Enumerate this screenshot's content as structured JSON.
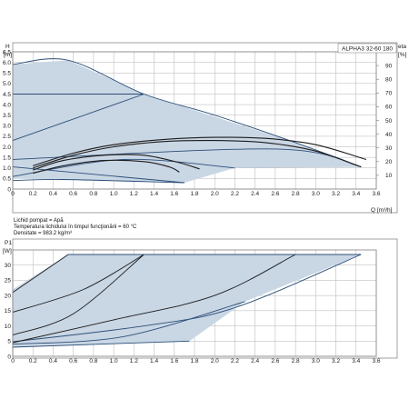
{
  "colors": {
    "area_fill": "#c9d6e4",
    "curve_dark": "#1c1c1c",
    "curve_blue": "#2c4f78",
    "grid": "#b3b3b3",
    "frame": "#8a8a8a"
  },
  "info": {
    "pumped_liquid": "Lichid pompat = Apă",
    "liquid_temp": "Temperatura lichidului în timpul funcţionării = 60 °C",
    "density": "Densitate = 983.2 kg/m³"
  },
  "chart_data": [
    {
      "type": "line",
      "title": "ALPHA3 32-60 180",
      "ylabel": "H [m]",
      "y2label": "eta [%]",
      "xlabel": "Q [m³/h]",
      "xlim": [
        0,
        3.6
      ],
      "ylim": [
        0,
        6.5
      ],
      "y2lim": [
        0,
        100
      ],
      "x_ticks": [
        "0",
        "0.2",
        "0.4",
        "0.6",
        "0.8",
        "1.0",
        "1.2",
        "1.4",
        "1.6",
        "1.8",
        "2.0",
        "2.2",
        "2.4",
        "2.6",
        "2.8",
        "3.0",
        "3.2",
        "3.4",
        "3.6"
      ],
      "y_ticks": [
        "0",
        "0.5",
        "1.0",
        "1.5",
        "2.0",
        "2.5",
        "3.0",
        "3.5",
        "4.0",
        "4.5",
        "5.0",
        "5.5",
        "6.0",
        "6.5"
      ],
      "y2_ticks": [
        "10",
        "20",
        "30",
        "40",
        "50",
        "60",
        "70",
        "80",
        "90"
      ],
      "grid": true,
      "operating_area": [
        [
          0,
          5.9
        ],
        [
          0.55,
          6.1
        ],
        [
          1.3,
          4.5
        ],
        [
          2.8,
          2.2
        ],
        [
          3.45,
          1.05
        ],
        [
          2.2,
          1.0
        ],
        [
          1.7,
          0.3
        ],
        [
          0,
          0.5
        ]
      ],
      "series": [
        {
          "role": "max_curve",
          "color": "#2c4f78",
          "points": [
            [
              0,
              5.9
            ],
            [
              0.55,
              6.1
            ],
            [
              1.3,
              4.5
            ],
            [
              2.0,
              3.5
            ],
            [
              2.8,
              2.2
            ],
            [
              3.45,
              1.05
            ]
          ]
        },
        {
          "role": "constant_pressure",
          "color": "#2c4f78",
          "points": [
            [
              0,
              4.5
            ],
            [
              1.3,
              4.5
            ]
          ]
        },
        {
          "role": "proportional_pressure",
          "color": "#2c4f78",
          "points": [
            [
              0,
              2.3
            ],
            [
              1.3,
              4.5
            ]
          ]
        },
        {
          "role": "constant_pressure",
          "color": "#2c4f78",
          "points": [
            [
              0,
              1.4
            ],
            [
              2.6,
              1.9
            ],
            [
              3.45,
              1.05
            ]
          ]
        },
        {
          "role": "constant_pressure",
          "color": "#2c4f78",
          "points": [
            [
              0,
              1.05
            ],
            [
              1.7,
              0.3
            ]
          ]
        },
        {
          "role": "constant_pressure",
          "color": "#2c4f78",
          "points": [
            [
              0,
              0.6
            ],
            [
              1.1,
              1.4
            ],
            [
              2.2,
              1.0
            ]
          ]
        },
        {
          "role": "constant_pressure",
          "color": "#2c4f78",
          "points": [
            [
              0,
              0.4
            ],
            [
              0.5,
              0.45
            ],
            [
              1.7,
              0.3
            ]
          ]
        },
        {
          "role": "eta",
          "color": "#1c1c1c",
          "points": [
            [
              0.2,
              1.1
            ],
            [
              0.6,
              1.7
            ],
            [
              1.0,
              2.1
            ],
            [
              1.5,
              2.35
            ],
            [
              2.0,
              2.45
            ],
            [
              2.5,
              2.4
            ],
            [
              3.0,
              2.1
            ],
            [
              3.5,
              1.4
            ]
          ]
        },
        {
          "role": "eta",
          "color": "#1c1c1c",
          "points": [
            [
              0.2,
              1.0
            ],
            [
              0.6,
              1.6
            ],
            [
              1.0,
              2.0
            ],
            [
              1.5,
              2.25
            ],
            [
              2.0,
              2.3
            ],
            [
              2.5,
              2.2
            ],
            [
              3.0,
              1.8
            ],
            [
              3.45,
              1.05
            ]
          ]
        },
        {
          "role": "eta",
          "color": "#1c1c1c",
          "points": [
            [
              0.2,
              0.9
            ],
            [
              0.5,
              1.35
            ],
            [
              0.9,
              1.6
            ],
            [
              1.3,
              1.6
            ],
            [
              1.65,
              1.25
            ],
            [
              1.85,
              0.95
            ]
          ]
        },
        {
          "role": "eta",
          "color": "#1c1c1c",
          "points": [
            [
              0.2,
              0.75
            ],
            [
              0.5,
              1.1
            ],
            [
              0.9,
              1.35
            ],
            [
              1.3,
              1.3
            ],
            [
              1.55,
              1.05
            ],
            [
              1.65,
              0.8
            ]
          ]
        }
      ]
    },
    {
      "type": "line",
      "ylabel": "P1 [W]",
      "xlim": [
        0,
        3.6
      ],
      "ylim": [
        0,
        35
      ],
      "x_ticks": [
        "0",
        "0.2",
        "0.4",
        "0.6",
        "0.8",
        "1.0",
        "1.2",
        "1.4",
        "1.6",
        "1.8",
        "2.0",
        "2.2",
        "2.4",
        "2.6",
        "2.8",
        "3.0",
        "3.2",
        "3.4",
        "3.6"
      ],
      "y_ticks": [
        "0",
        "5",
        "10",
        "15",
        "20",
        "25",
        "30"
      ],
      "grid": true,
      "operating_area": [
        [
          0,
          22
        ],
        [
          0.55,
          33.5
        ],
        [
          3.45,
          33.5
        ],
        [
          2.3,
          18
        ],
        [
          1.75,
          5
        ],
        [
          0,
          3
        ]
      ],
      "series": [
        {
          "role": "power",
          "color": "#2c4f78",
          "points": [
            [
              0,
              3
            ],
            [
              1.75,
              5
            ]
          ]
        },
        {
          "role": "power",
          "color": "#2c4f78",
          "points": [
            [
              0,
              4
            ],
            [
              1.1,
              6.5
            ],
            [
              2.3,
              18
            ]
          ]
        },
        {
          "role": "power",
          "color": "#2c4f78",
          "points": [
            [
              0,
              4.8
            ],
            [
              1.3,
              10
            ],
            [
              2.2,
              16
            ],
            [
              3.45,
              33.5
            ]
          ]
        },
        {
          "role": "power",
          "color": "#1c1c1c",
          "points": [
            [
              0,
              7
            ],
            [
              0.6,
              14
            ],
            [
              1.3,
              33.5
            ]
          ]
        },
        {
          "role": "power",
          "color": "#1c1c1c",
          "points": [
            [
              0,
              14.5
            ],
            [
              0.7,
              22
            ],
            [
              1.3,
              33.5
            ]
          ]
        },
        {
          "role": "power",
          "color": "#1c1c1c",
          "points": [
            [
              0,
              4.5
            ],
            [
              1.0,
              12
            ],
            [
              2.0,
              20
            ],
            [
              2.8,
              33.5
            ]
          ]
        },
        {
          "role": "power",
          "color": "#1c1c1c",
          "points": [
            [
              0,
              21
            ],
            [
              0.55,
              33.5
            ]
          ]
        },
        {
          "role": "max_power",
          "color": "#2c4f78",
          "points": [
            [
              0.55,
              33.5
            ],
            [
              3.45,
              33.5
            ]
          ]
        }
      ]
    }
  ]
}
